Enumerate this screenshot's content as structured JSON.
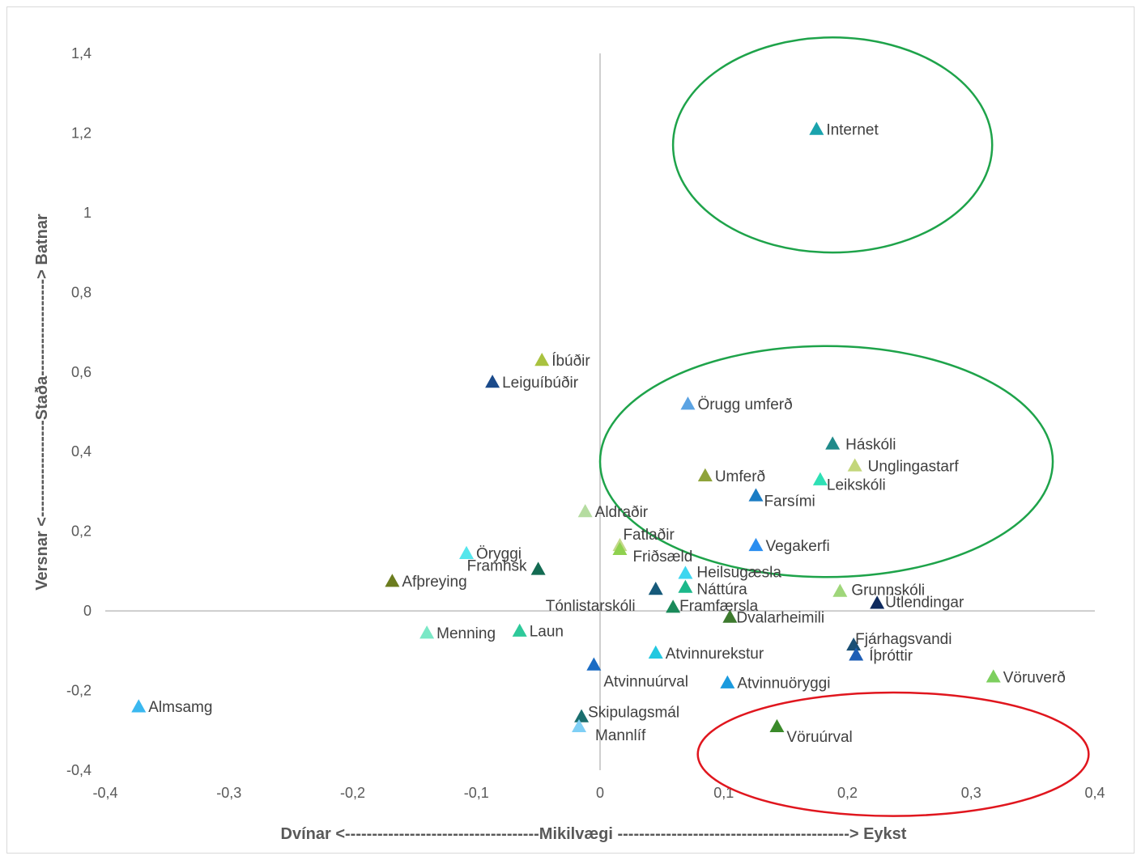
{
  "chart_data": {
    "type": "scatter",
    "xlabel": "Dvínar <------------------------------------Mikilvægi -------------------------------------------> Eykst",
    "ylabel": "Versnar <------------------Staða------------------> Batnar",
    "xlim": [
      -0.4,
      0.4
    ],
    "ylim": [
      -0.4,
      1.4
    ],
    "x_ticks": [
      "-0,4",
      "-0,3",
      "-0,2",
      "-0,1",
      "0",
      "0,1",
      "0,2",
      "0,3",
      "0,4"
    ],
    "y_ticks": [
      "-0,4",
      "-0,2",
      "0",
      "0,2",
      "0,4",
      "0,6",
      "0,8",
      "1",
      "1,2",
      "1,4"
    ],
    "grid": false,
    "points": [
      {
        "label": "Internet",
        "x": 0.175,
        "y": 1.21,
        "color": "#1aa3ad"
      },
      {
        "label": "Íbúðir",
        "x": -0.047,
        "y": 0.63,
        "color": "#a9c23f"
      },
      {
        "label": "Leiguíbúðir",
        "x": -0.087,
        "y": 0.575,
        "color": "#1a4a8a"
      },
      {
        "label": "Örugg umferð",
        "x": 0.071,
        "y": 0.52,
        "color": "#5ba3e3"
      },
      {
        "label": "Háskóli",
        "x": 0.188,
        "y": 0.42,
        "color": "#1f8a8a"
      },
      {
        "label": "Unglingastarf",
        "x": 0.206,
        "y": 0.365,
        "color": "#c3d67a"
      },
      {
        "label": "Umferð",
        "x": 0.085,
        "y": 0.34,
        "color": "#8fa33a"
      },
      {
        "label": "Leikskóli",
        "x": 0.178,
        "y": 0.33,
        "color": "#2ee0b5"
      },
      {
        "label": "Farsími",
        "x": 0.126,
        "y": 0.29,
        "color": "#1a7cc4"
      },
      {
        "label": "Aldraðir",
        "x": -0.012,
        "y": 0.25,
        "color": "#b5dca0"
      },
      {
        "label": "Vegakerfi",
        "x": 0.126,
        "y": 0.165,
        "color": "#2b8ef0"
      },
      {
        "label": "Fatlaðir",
        "x": 0.016,
        "y": 0.165,
        "color": "#c4d98a"
      },
      {
        "label": "Friðsæld",
        "x": 0.016,
        "y": 0.155,
        "color": "#8fd14f"
      },
      {
        "label": "Öryggi",
        "x": -0.108,
        "y": 0.145,
        "color": "#55e6ec"
      },
      {
        "label": "Framhsk",
        "x": -0.05,
        "y": 0.105,
        "color": "#136b52"
      },
      {
        "label": "Heilsugæsla",
        "x": 0.069,
        "y": 0.095,
        "color": "#3dd6f0"
      },
      {
        "label": "Afþreying",
        "x": -0.168,
        "y": 0.075,
        "color": "#6b7c1e"
      },
      {
        "label": "Náttúra",
        "x": 0.069,
        "y": 0.06,
        "color": "#1cb88a"
      },
      {
        "label": "Tónlistarskóli",
        "x": 0.045,
        "y": 0.055,
        "color": "#165a7a"
      },
      {
        "label": "Grunnskóli",
        "x": 0.194,
        "y": 0.05,
        "color": "#9fd67a"
      },
      {
        "label": "Útlendingar",
        "x": 0.224,
        "y": 0.02,
        "color": "#0e2a5e"
      },
      {
        "label": "Framfærsla",
        "x": 0.059,
        "y": 0.01,
        "color": "#1a8a5a"
      },
      {
        "label": "Dvalarheimili",
        "x": 0.105,
        "y": -0.015,
        "color": "#3d7a2e"
      },
      {
        "label": "Menning",
        "x": -0.14,
        "y": -0.055,
        "color": "#7ae8c6"
      },
      {
        "label": "Laun",
        "x": -0.065,
        "y": -0.05,
        "color": "#2ec99a"
      },
      {
        "label": "Fjárhagsvandi",
        "x": 0.205,
        "y": -0.085,
        "color": "#1a4f75"
      },
      {
        "label": "Atvinnurekstur",
        "x": 0.045,
        "y": -0.105,
        "color": "#22c8e0"
      },
      {
        "label": "Íþróttir",
        "x": 0.207,
        "y": -0.11,
        "color": "#1e5eb5"
      },
      {
        "label": "Atvinnuúrval",
        "x": -0.005,
        "y": -0.135,
        "color": "#1a6cc4"
      },
      {
        "label": "Vöruverð",
        "x": 0.318,
        "y": -0.165,
        "color": "#7dcf5e"
      },
      {
        "label": "Atvinnuöryggi",
        "x": 0.103,
        "y": -0.18,
        "color": "#1a9ade"
      },
      {
        "label": "Almsamg",
        "x": -0.373,
        "y": -0.24,
        "color": "#3ab8f0"
      },
      {
        "label": "Skipulagsmál",
        "x": -0.015,
        "y": -0.265,
        "color": "#1a6e6e"
      },
      {
        "label": "Vöruúrval",
        "x": 0.143,
        "y": -0.29,
        "color": "#3a8a2a"
      },
      {
        "label": "Mannlíf",
        "x": -0.017,
        "y": -0.29,
        "color": "#7fcff5"
      }
    ],
    "ellipses": [
      {
        "cx": 0.188,
        "cy": 1.17,
        "rx": 0.129,
        "ry": 0.27,
        "color": "#1ea34a"
      },
      {
        "cx": 0.183,
        "cy": 0.375,
        "rx": 0.183,
        "ry": 0.29,
        "color": "#1ea34a"
      },
      {
        "cx": 0.237,
        "cy": -0.36,
        "rx": 0.158,
        "ry": 0.155,
        "color": "#e0161e"
      }
    ]
  }
}
